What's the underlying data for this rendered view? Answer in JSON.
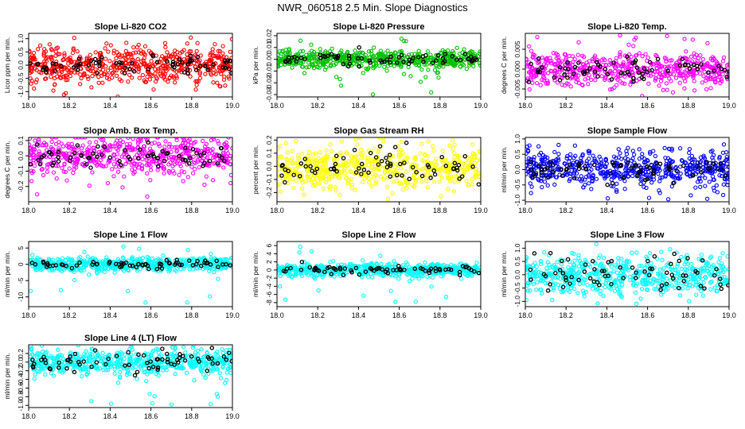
{
  "page_title": "NWR_060518  2.5 Min. Slope Diagnostics",
  "colors": {
    "red": "#ff0000",
    "green": "#00c000",
    "magenta": "#ff00ff",
    "yellow": "#ffff00",
    "blue": "#0000ff",
    "cyan": "#00ffff",
    "black": "#000000"
  },
  "chart_data": [
    {
      "type": "scatter",
      "title": "Slope Li-820 CO2",
      "ylabel": "Licor ppm per min.",
      "xlim": [
        18.0,
        19.0
      ],
      "ylim": [
        -1.2,
        1.2
      ],
      "xticks": [
        "18.0",
        "18.2",
        "18.4",
        "18.6",
        "18.8",
        "19.0"
      ],
      "yticks": [
        "-1.0",
        "-0.5",
        "0.0",
        "0.5",
        "1.0"
      ],
      "series": [
        {
          "color": "#ff0000",
          "spread": 0.35,
          "outlier_min": -1.2,
          "outlier_max": 1.1
        },
        {
          "color": "#000000",
          "spread": 0.15
        }
      ]
    },
    {
      "type": "scatter",
      "title": "Slope Li-820 Pressure",
      "ylabel": "kPa per min.",
      "xlim": [
        18.0,
        19.0
      ],
      "ylim": [
        -0.032,
        0.022
      ],
      "xticks": [
        "18.0",
        "18.2",
        "18.4",
        "18.6",
        "18.8",
        "19.0"
      ],
      "yticks": [
        "-0.03",
        "-0.02",
        "-0.01",
        "0.00",
        "0.01",
        "0.02"
      ],
      "series": [
        {
          "color": "#00c000",
          "spread": 0.004,
          "outlier_min": -0.03,
          "outlier_max": 0.02
        },
        {
          "color": "#000000",
          "spread": 0.003
        }
      ]
    },
    {
      "type": "scatter",
      "title": "Slope Li-820 Temp.",
      "ylabel": "degrees C per min.",
      "xlim": [
        18.0,
        19.0
      ],
      "ylim": [
        -0.007,
        0.009
      ],
      "xticks": [
        "18.0",
        "18.2",
        "18.4",
        "18.6",
        "18.8",
        "19.0"
      ],
      "yticks": [
        "-0.005",
        "0.000",
        "0.005"
      ],
      "series": [
        {
          "color": "#ff00ff",
          "spread": 0.002,
          "outlier_min": -0.007,
          "outlier_max": 0.009
        },
        {
          "color": "#000000",
          "spread": 0.0015
        }
      ]
    },
    {
      "type": "scatter",
      "title": "Slope Amb. Box Temp.",
      "ylabel": "degrees C per min.",
      "xlim": [
        18.0,
        19.0
      ],
      "ylim": [
        -0.3,
        0.12
      ],
      "xticks": [
        "18.0",
        "18.2",
        "18.4",
        "18.6",
        "18.8",
        "19.0"
      ],
      "yticks": [
        "-0.2",
        "-0.1",
        "0.0",
        "0.1"
      ],
      "series": [
        {
          "color": "#ff00ff",
          "spread": 0.06,
          "outlier_min": -0.27,
          "outlier_max": 0.1
        },
        {
          "color": "#000000",
          "spread": 0.04
        }
      ]
    },
    {
      "type": "scatter",
      "title": "Slope Gas Stream RH",
      "ylabel": "percent per min.",
      "xlim": [
        18.0,
        19.0
      ],
      "ylim": [
        -0.27,
        0.22
      ],
      "xticks": [
        "18.0",
        "18.2",
        "18.4",
        "18.6",
        "18.8",
        "19.0"
      ],
      "yticks": [
        "-0.2",
        "-0.1",
        "0.0",
        "0.1",
        "0.2"
      ],
      "series": [
        {
          "color": "#ffff00",
          "spread": 0.08,
          "outlier_min": -0.25,
          "outlier_max": 0.2
        },
        {
          "color": "#000000",
          "spread": 0.06
        }
      ]
    },
    {
      "type": "scatter",
      "title": "Slope Sample Flow",
      "ylabel": "ml/min per min.",
      "xlim": [
        18.0,
        19.0
      ],
      "ylim": [
        -1.05,
        1.05
      ],
      "xticks": [
        "18.0",
        "18.2",
        "18.4",
        "18.6",
        "18.8",
        "19.0"
      ],
      "yticks": [
        "-1.0",
        "-0.5",
        "0.0",
        "0.5",
        "1.0"
      ],
      "series": [
        {
          "color": "#0000ff",
          "spread": 0.3,
          "outlier_min": -1.0,
          "outlier_max": 1.0
        },
        {
          "color": "#000000",
          "spread": 0.2
        }
      ]
    },
    {
      "type": "scatter",
      "title": "Slope Line 1 Flow",
      "ylabel": "ml/min per min.",
      "xlim": [
        18.0,
        19.0
      ],
      "ylim": [
        -13,
        7
      ],
      "xticks": [
        "18.0",
        "18.2",
        "18.4",
        "18.6",
        "18.8",
        "19.0"
      ],
      "yticks": [
        "-10",
        "-5",
        "0",
        "5"
      ],
      "series": [
        {
          "color": "#00ffff",
          "spread": 1.0,
          "outlier_min": -12,
          "outlier_max": 6
        },
        {
          "color": "#000000",
          "spread": 0.6
        }
      ]
    },
    {
      "type": "scatter",
      "title": "Slope Line 2 Flow",
      "ylabel": "ml/min per min.",
      "xlim": [
        18.0,
        19.0
      ],
      "ylim": [
        -9,
        7
      ],
      "xticks": [
        "18.0",
        "18.2",
        "18.4",
        "18.6",
        "18.8",
        "19.0"
      ],
      "yticks": [
        "-8",
        "-6",
        "-4",
        "-2",
        "0",
        "2",
        "4",
        "6"
      ],
      "series": [
        {
          "color": "#00ffff",
          "spread": 0.8,
          "outlier_min": -8,
          "outlier_max": 6
        },
        {
          "color": "#000000",
          "spread": 0.6
        }
      ]
    },
    {
      "type": "scatter",
      "title": "Slope Line 3 Flow",
      "ylabel": "ml/min per min.",
      "xlim": [
        18.0,
        19.0
      ],
      "ylim": [
        -1.2,
        1.25
      ],
      "xticks": [
        "18.0",
        "18.2",
        "18.4",
        "18.6",
        "18.8",
        "19.0"
      ],
      "yticks": [
        "-1.0",
        "-0.5",
        "0.0",
        "0.5",
        "1.0"
      ],
      "series": [
        {
          "color": "#00ffff",
          "spread": 0.35,
          "outlier_min": -1.1,
          "outlier_max": 1.1
        },
        {
          "color": "#000000",
          "spread": 0.3
        }
      ]
    },
    {
      "type": "scatter",
      "title": "Slope Line 4 (LT) Flow",
      "ylabel": "ml/min per min.",
      "xlim": [
        18.0,
        19.0
      ],
      "ylim": [
        -1.05,
        0.4
      ],
      "xticks": [
        "18.0",
        "18.2",
        "18.4",
        "18.6",
        "18.8",
        "19.0"
      ],
      "yticks": [
        "-1.0",
        "-0.8",
        "-0.6",
        "-0.4",
        "-0.2",
        "0.0",
        "0.2"
      ],
      "series": [
        {
          "color": "#00ffff",
          "spread": 0.15,
          "outlier_min": -1.0,
          "outlier_max": 0.3
        },
        {
          "color": "#000000",
          "spread": 0.12
        }
      ]
    }
  ]
}
